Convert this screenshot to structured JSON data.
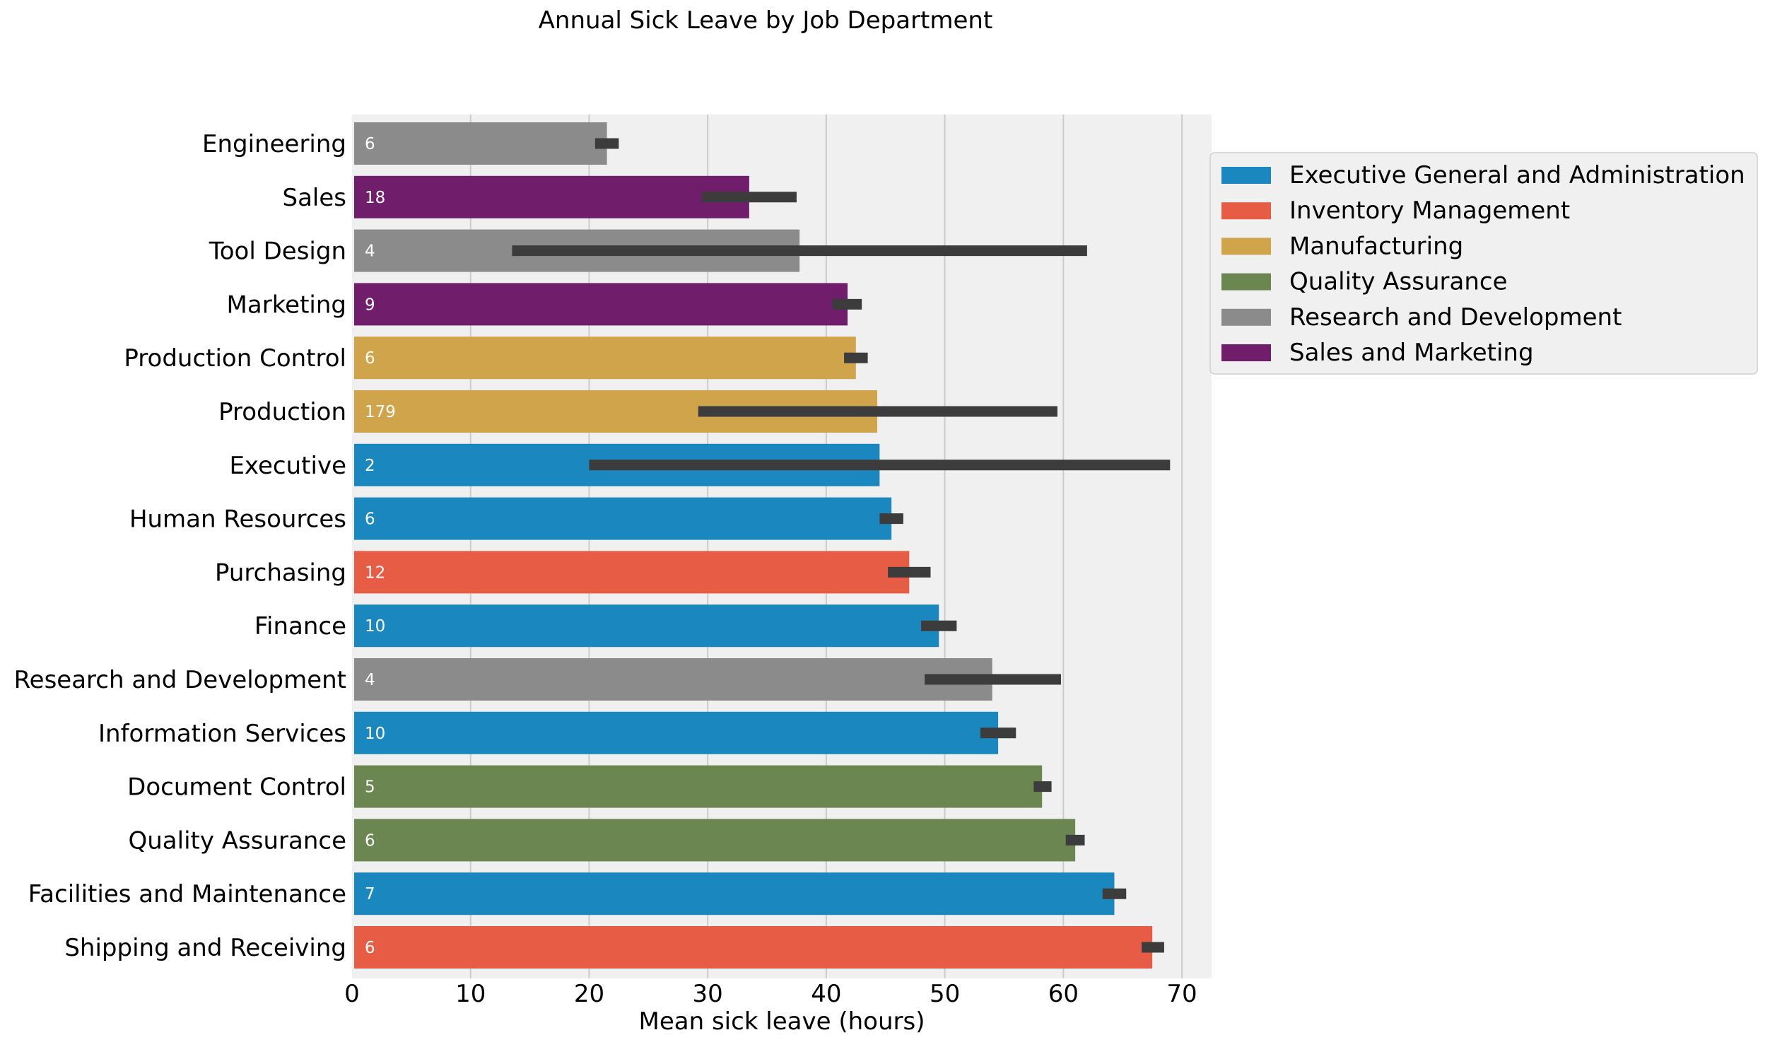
{
  "chart_data": {
    "type": "bar",
    "orientation": "horizontal",
    "title": "Annual Sick Leave by Job Department",
    "xlabel": "Mean sick leave (hours)",
    "ylabel": "",
    "xlim": [
      0,
      72.5
    ],
    "xticks": [
      0,
      10,
      20,
      30,
      40,
      50,
      60,
      70
    ],
    "grid": "vertical",
    "legend_position": "outside-right",
    "background": "#f0f0f0",
    "groups": [
      {
        "name": "Executive General and Administration",
        "color": "#1b87bf"
      },
      {
        "name": "Inventory Management",
        "color": "#e65c45"
      },
      {
        "name": "Manufacturing",
        "color": "#d0a44b"
      },
      {
        "name": "Quality Assurance",
        "color": "#6b8651"
      },
      {
        "name": "Research and Development",
        "color": "#8b8b8b"
      },
      {
        "name": "Sales and Marketing",
        "color": "#701e6b"
      }
    ],
    "bars": [
      {
        "category": "Engineering",
        "value": 21.5,
        "ci": [
          20.5,
          22.5
        ],
        "count": "6",
        "group": "Research and Development"
      },
      {
        "category": "Sales",
        "value": 33.5,
        "ci": [
          29.5,
          37.5
        ],
        "count": "18",
        "group": "Sales and Marketing"
      },
      {
        "category": "Tool Design",
        "value": 37.75,
        "ci": [
          13.5,
          62.0
        ],
        "count": "4",
        "group": "Research and Development"
      },
      {
        "category": "Marketing",
        "value": 41.8,
        "ci": [
          40.5,
          43.0
        ],
        "count": "9",
        "group": "Sales and Marketing"
      },
      {
        "category": "Production Control",
        "value": 42.5,
        "ci": [
          41.5,
          43.5
        ],
        "count": "6",
        "group": "Manufacturing"
      },
      {
        "category": "Production",
        "value": 44.3,
        "ci": [
          29.2,
          59.5
        ],
        "count": "179",
        "group": "Manufacturing"
      },
      {
        "category": "Executive",
        "value": 44.5,
        "ci": [
          20.0,
          69.0
        ],
        "count": "2",
        "group": "Executive General and Administration"
      },
      {
        "category": "Human Resources",
        "value": 45.5,
        "ci": [
          44.5,
          46.5
        ],
        "count": "6",
        "group": "Executive General and Administration"
      },
      {
        "category": "Purchasing",
        "value": 47.0,
        "ci": [
          45.2,
          48.8
        ],
        "count": "12",
        "group": "Inventory Management"
      },
      {
        "category": "Finance",
        "value": 49.5,
        "ci": [
          48.0,
          51.0
        ],
        "count": "10",
        "group": "Executive General and Administration"
      },
      {
        "category": "Research and Development",
        "value": 54.0,
        "ci": [
          48.3,
          59.8
        ],
        "count": "4",
        "group": "Research and Development"
      },
      {
        "category": "Information Services",
        "value": 54.5,
        "ci": [
          53.0,
          56.0
        ],
        "count": "10",
        "group": "Executive General and Administration"
      },
      {
        "category": "Document Control",
        "value": 58.2,
        "ci": [
          57.5,
          59.0
        ],
        "count": "5",
        "group": "Quality Assurance"
      },
      {
        "category": "Quality Assurance",
        "value": 61.0,
        "ci": [
          60.2,
          61.8
        ],
        "count": "6",
        "group": "Quality Assurance"
      },
      {
        "category": "Facilities and Maintenance",
        "value": 64.3,
        "ci": [
          63.3,
          65.3
        ],
        "count": "7",
        "group": "Executive General and Administration"
      },
      {
        "category": "Shipping and Receiving",
        "value": 67.5,
        "ci": [
          66.6,
          68.5
        ],
        "count": "6",
        "group": "Inventory Management"
      }
    ]
  }
}
